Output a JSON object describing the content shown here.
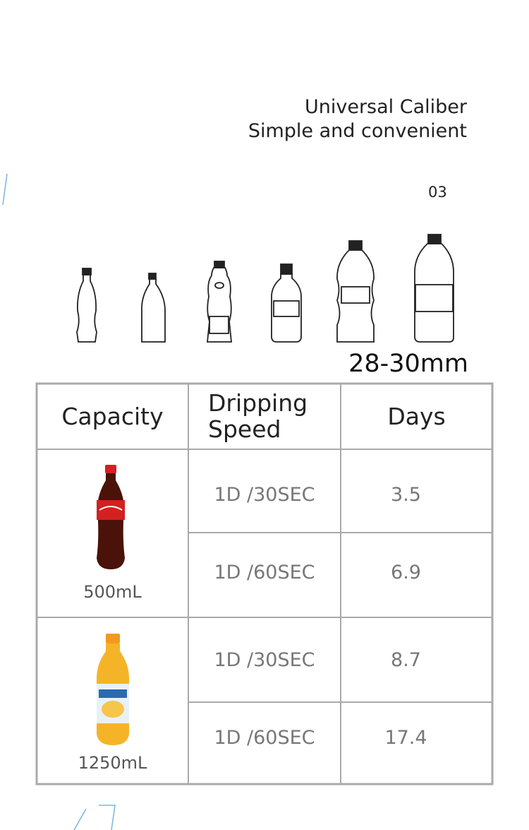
{
  "header": {
    "title": "Universal Caliber",
    "subtitle": "Simple and convenient",
    "number": "03"
  },
  "bottles": {
    "caliber": "28-30mm"
  },
  "table": {
    "headers": [
      "Capacity",
      "Dripping Speed",
      "Days"
    ],
    "groups": [
      {
        "capacity": "500mL",
        "rows": [
          {
            "speed": "1D /30SEC",
            "days": "3.5"
          },
          {
            "speed": "1D /60SEC",
            "days": "6.9"
          }
        ]
      },
      {
        "capacity": "1250mL",
        "rows": [
          {
            "speed": "1D /30SEC",
            "days": "8.7"
          },
          {
            "speed": "1D /60SEC",
            "days": "17.4"
          }
        ]
      }
    ]
  }
}
